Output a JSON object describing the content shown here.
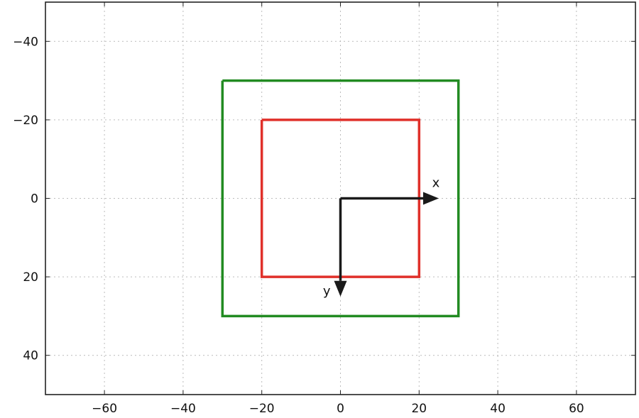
{
  "chart_data": {
    "type": "line",
    "title": "",
    "xlabel": "",
    "ylabel": "",
    "xlim": [
      -75,
      75
    ],
    "ylim": [
      50,
      -50
    ],
    "y_inverted": true,
    "grid": true,
    "x_ticks": [
      -60,
      -40,
      -20,
      0,
      20,
      40,
      60
    ],
    "y_ticks": [
      -40,
      -20,
      0,
      20,
      40
    ],
    "x_tick_labels": [
      "−60",
      "−40",
      "−20",
      "0",
      "20",
      "40",
      "60"
    ],
    "y_tick_labels": [
      "−40",
      "−20",
      "0",
      "20",
      "40"
    ],
    "series": [
      {
        "color": "#228b22",
        "x": [
          -30,
          30,
          30,
          -30,
          -30
        ],
        "y": [
          -30,
          -30,
          30,
          30,
          -30
        ]
      },
      {
        "color": "#e0302a",
        "x": [
          -20,
          20,
          20,
          -20,
          -20
        ],
        "y": [
          -20,
          -20,
          20,
          20,
          -20
        ]
      }
    ],
    "annotations": [
      {
        "label": "x",
        "from": [
          0,
          0
        ],
        "to": [
          25,
          0
        ]
      },
      {
        "label": "y",
        "from": [
          0,
          0
        ],
        "to": [
          0,
          25
        ]
      }
    ]
  }
}
